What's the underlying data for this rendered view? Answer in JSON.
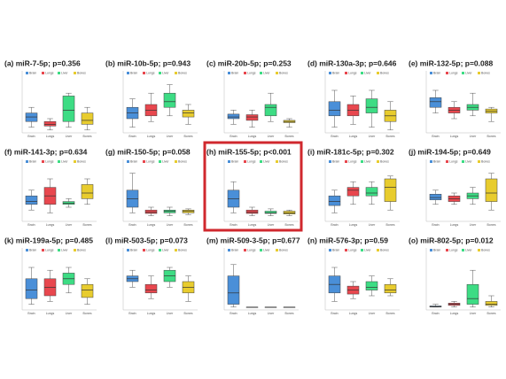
{
  "chart_data": [
    {
      "type": "box",
      "title": "(a) miR-7-5p; p=0.356",
      "categories": [
        "Brain",
        "Lungs",
        "Liver",
        "Bones"
      ],
      "colors": [
        "#4a8fd8",
        "#e8474e",
        "#3ddc84",
        "#e8cc2e"
      ],
      "ylim": [
        0,
        1
      ],
      "stats": [
        [
          0.1,
          0.2,
          0.28,
          0.35,
          0.45
        ],
        [
          0.05,
          0.12,
          0.15,
          0.2,
          0.25
        ],
        [
          0.1,
          0.2,
          0.4,
          0.65,
          0.7
        ],
        [
          0.05,
          0.15,
          0.22,
          0.35,
          0.45
        ]
      ]
    },
    {
      "type": "box",
      "title": "(b) miR-10b-5p; p=0.943",
      "categories": [
        "Brain",
        "Lungs",
        "Liver",
        "Bones"
      ],
      "colors": [
        "#4a8fd8",
        "#e8474e",
        "#3ddc84",
        "#e8cc2e"
      ],
      "ylim": [
        0,
        1
      ],
      "stats": [
        [
          0.1,
          0.25,
          0.35,
          0.45,
          0.6
        ],
        [
          0.2,
          0.3,
          0.4,
          0.5,
          0.7
        ],
        [
          0.3,
          0.45,
          0.55,
          0.7,
          0.85
        ],
        [
          0.15,
          0.28,
          0.35,
          0.4,
          0.5
        ]
      ]
    },
    {
      "type": "box",
      "title": "(c) miR-20b-5p; p=0.253",
      "categories": [
        "Brain",
        "Lungs",
        "Liver",
        "Bones"
      ],
      "colors": [
        "#4a8fd8",
        "#e8474e",
        "#3ddc84",
        "#e8cc2e"
      ],
      "ylim": [
        0,
        1
      ],
      "stats": [
        [
          0.15,
          0.25,
          0.28,
          0.33,
          0.4
        ],
        [
          0.1,
          0.22,
          0.28,
          0.32,
          0.4
        ],
        [
          0.2,
          0.3,
          0.45,
          0.5,
          0.7
        ],
        [
          0.1,
          0.18,
          0.2,
          0.22,
          0.25
        ]
      ]
    },
    {
      "type": "box",
      "title": "(d) miR-130a-3p; p=0.646",
      "categories": [
        "Brain",
        "Lungs",
        "Liver",
        "Bones"
      ],
      "colors": [
        "#4a8fd8",
        "#e8474e",
        "#3ddc84",
        "#e8cc2e"
      ],
      "ylim": [
        0,
        1
      ],
      "stats": [
        [
          0.1,
          0.3,
          0.4,
          0.55,
          0.75
        ],
        [
          0.15,
          0.3,
          0.4,
          0.5,
          0.65
        ],
        [
          0.1,
          0.35,
          0.45,
          0.6,
          0.75
        ],
        [
          0.05,
          0.2,
          0.3,
          0.4,
          0.55
        ]
      ]
    },
    {
      "type": "box",
      "title": "(e) miR-132-5p; p=0.088",
      "categories": [
        "Brain",
        "Lungs",
        "Liver",
        "Bones"
      ],
      "colors": [
        "#4a8fd8",
        "#e8474e",
        "#3ddc84",
        "#e8cc2e"
      ],
      "ylim": [
        0,
        1
      ],
      "stats": [
        [
          0.35,
          0.45,
          0.55,
          0.62,
          0.75
        ],
        [
          0.25,
          0.35,
          0.4,
          0.45,
          0.55
        ],
        [
          0.3,
          0.4,
          0.45,
          0.5,
          0.7
        ],
        [
          0.2,
          0.35,
          0.38,
          0.42,
          0.45
        ]
      ]
    },
    {
      "type": "box",
      "title": "(f) miR-141-3p; p=0.634",
      "categories": [
        "Brain",
        "Lungs",
        "Liver",
        "Bones"
      ],
      "colors": [
        "#4a8fd8",
        "#e8474e",
        "#3ddc84",
        "#e8cc2e"
      ],
      "ylim": [
        0,
        1
      ],
      "stats": [
        [
          0.2,
          0.3,
          0.35,
          0.45,
          0.55
        ],
        [
          0.15,
          0.3,
          0.45,
          0.6,
          0.75
        ],
        [
          0.25,
          0.3,
          0.32,
          0.35,
          0.4
        ],
        [
          0.3,
          0.4,
          0.5,
          0.65,
          0.75
        ]
      ]
    },
    {
      "type": "box",
      "title": "(g) miR-150-5p; p=0.058",
      "categories": [
        "Brain",
        "Lungs",
        "Liver",
        "Bones"
      ],
      "colors": [
        "#4a8fd8",
        "#e8474e",
        "#3ddc84",
        "#e8cc2e"
      ],
      "ylim": [
        0,
        1
      ],
      "stats": [
        [
          0.15,
          0.25,
          0.4,
          0.55,
          0.85
        ],
        [
          0.1,
          0.14,
          0.16,
          0.2,
          0.25
        ],
        [
          0.1,
          0.15,
          0.18,
          0.2,
          0.25
        ],
        [
          0.12,
          0.15,
          0.18,
          0.2,
          0.22
        ]
      ]
    },
    {
      "type": "box",
      "title": "(h) miR-155-5p; p<0.001",
      "categories": [
        "Brain",
        "Lungs",
        "Liver",
        "Bones"
      ],
      "colors": [
        "#4a8fd8",
        "#e8474e",
        "#3ddc84",
        "#e8cc2e"
      ],
      "ylim": [
        0,
        1
      ],
      "stats": [
        [
          0.15,
          0.25,
          0.4,
          0.55,
          0.7
        ],
        [
          0.1,
          0.14,
          0.16,
          0.2,
          0.25
        ],
        [
          0.1,
          0.14,
          0.15,
          0.18,
          0.22
        ],
        [
          0.1,
          0.13,
          0.15,
          0.18,
          0.2
        ]
      ]
    },
    {
      "type": "box",
      "title": "(i) miR-181c-5p; p=0.302",
      "categories": [
        "Brain",
        "Lungs",
        "Liver",
        "Bones"
      ],
      "colors": [
        "#4a8fd8",
        "#e8474e",
        "#3ddc84",
        "#e8cc2e"
      ],
      "ylim": [
        0,
        1
      ],
      "stats": [
        [
          0.15,
          0.28,
          0.35,
          0.45,
          0.55
        ],
        [
          0.3,
          0.45,
          0.55,
          0.6,
          0.7
        ],
        [
          0.3,
          0.45,
          0.5,
          0.6,
          0.7
        ],
        [
          0.2,
          0.35,
          0.6,
          0.75,
          0.8
        ]
      ]
    },
    {
      "type": "box",
      "title": "(j) miR-194-5p; p=0.649",
      "categories": [
        "Brain",
        "Lungs",
        "Liver",
        "Bones"
      ],
      "colors": [
        "#4a8fd8",
        "#e8474e",
        "#3ddc84",
        "#e8cc2e"
      ],
      "ylim": [
        0,
        1
      ],
      "stats": [
        [
          0.3,
          0.38,
          0.42,
          0.48,
          0.55
        ],
        [
          0.3,
          0.35,
          0.4,
          0.45,
          0.5
        ],
        [
          0.3,
          0.4,
          0.45,
          0.5,
          0.6
        ],
        [
          0.2,
          0.35,
          0.5,
          0.75,
          0.85
        ]
      ]
    },
    {
      "type": "box",
      "title": "(k) miR-199a-5p; p=0.485",
      "categories": [
        "Brain",
        "Lungs",
        "Liver",
        "Bones"
      ],
      "colors": [
        "#4a8fd8",
        "#e8474e",
        "#3ddc84",
        "#e8cc2e"
      ],
      "ylim": [
        0,
        1
      ],
      "stats": [
        [
          0.1,
          0.2,
          0.35,
          0.55,
          0.75
        ],
        [
          0.15,
          0.25,
          0.4,
          0.55,
          0.7
        ],
        [
          0.3,
          0.45,
          0.55,
          0.65,
          0.75
        ],
        [
          0.1,
          0.22,
          0.35,
          0.45,
          0.55
        ]
      ]
    },
    {
      "type": "box",
      "title": "(l) miR-503-5p; p=0.073",
      "categories": [
        "Brain",
        "Lungs",
        "Liver",
        "Bones"
      ],
      "colors": [
        "#4a8fd8",
        "#e8474e",
        "#3ddc84",
        "#e8cc2e"
      ],
      "ylim": [
        0,
        1
      ],
      "stats": [
        [
          0.4,
          0.5,
          0.55,
          0.6,
          0.7
        ],
        [
          0.2,
          0.3,
          0.35,
          0.45,
          0.6
        ],
        [
          0.4,
          0.5,
          0.6,
          0.7,
          0.75
        ],
        [
          0.15,
          0.3,
          0.4,
          0.5,
          0.6
        ]
      ]
    },
    {
      "type": "box",
      "title": "(m) miR-509-3-5p; p=0.677",
      "categories": [
        "Brain",
        "Lungs",
        "Liver",
        "Bones"
      ],
      "colors": [
        "#4a8fd8",
        "#e8474e",
        "#3ddc84",
        "#e8cc2e"
      ],
      "ylim": [
        0,
        1
      ],
      "stats": [
        [
          0.05,
          0.1,
          0.3,
          0.6,
          0.8
        ],
        [
          0.05,
          0.05,
          0.05,
          0.05,
          0.05
        ],
        [
          0.05,
          0.05,
          0.05,
          0.05,
          0.05
        ],
        [
          0.05,
          0.05,
          0.05,
          0.05,
          0.05
        ]
      ]
    },
    {
      "type": "box",
      "title": "(n) miR-576-3p; p=0.59",
      "categories": [
        "Brain",
        "Lungs",
        "Liver",
        "Bones"
      ],
      "colors": [
        "#4a8fd8",
        "#e8474e",
        "#3ddc84",
        "#e8cc2e"
      ],
      "ylim": [
        0,
        1
      ],
      "stats": [
        [
          0.15,
          0.3,
          0.45,
          0.6,
          0.75
        ],
        [
          0.2,
          0.28,
          0.35,
          0.42,
          0.5
        ],
        [
          0.25,
          0.35,
          0.4,
          0.5,
          0.6
        ],
        [
          0.25,
          0.3,
          0.35,
          0.45,
          0.55
        ]
      ]
    },
    {
      "type": "box",
      "title": "(o) miR-802-5p; p=0.012",
      "categories": [
        "Brain",
        "Lungs",
        "Liver",
        "Bones"
      ],
      "colors": [
        "#4a8fd8",
        "#e8474e",
        "#3ddc84",
        "#e8cc2e"
      ],
      "ylim": [
        0,
        1
      ],
      "stats": [
        [
          0.05,
          0.05,
          0.06,
          0.07,
          0.1
        ],
        [
          0.05,
          0.08,
          0.1,
          0.12,
          0.15
        ],
        [
          0.05,
          0.1,
          0.2,
          0.45,
          0.7
        ],
        [
          0.05,
          0.08,
          0.1,
          0.15,
          0.25
        ]
      ]
    }
  ]
}
